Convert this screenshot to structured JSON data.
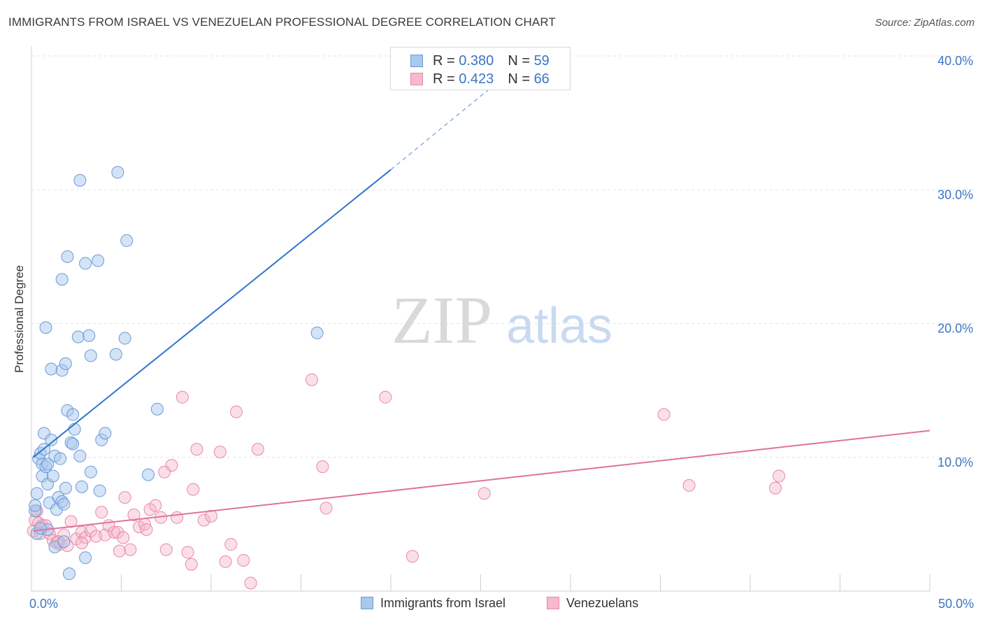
{
  "title": "IMMIGRANTS FROM ISRAEL VS VENEZUELAN PROFESSIONAL DEGREE CORRELATION CHART",
  "source": "Source: ZipAtlas.com",
  "watermark": {
    "zip": "ZIP",
    "atlas": "atlas"
  },
  "colors": {
    "blue_fill": "#a9c8ee",
    "blue_stroke": "#6a9bd8",
    "blue_line": "#2f74d0",
    "pink_fill": "#f7b9cc",
    "pink_stroke": "#e889a6",
    "pink_line": "#e0739b",
    "axis_text": "#3a75c4"
  },
  "legend_top": [
    {
      "r_label": "R = ",
      "r_value": "0.380",
      "n_label": "N = ",
      "n_value": "59"
    },
    {
      "r_label": "R = ",
      "r_value": "0.423",
      "n_label": "N = ",
      "n_value": "66"
    }
  ],
  "chart_data": {
    "type": "scatter",
    "title": "IMMIGRANTS FROM ISRAEL VS VENEZUELAN PROFESSIONAL DEGREE CORRELATION CHART",
    "xlabel": "",
    "ylabel": "Professional Degree",
    "xlim": [
      0,
      50
    ],
    "ylim": [
      0,
      40
    ],
    "x_tick_labels": [
      "0.0%",
      "50.0%"
    ],
    "y_ticks": [
      10,
      20,
      30,
      40
    ],
    "y_tick_labels": [
      "10.0%",
      "20.0%",
      "30.0%",
      "40.0%"
    ],
    "grid": true,
    "legend_position": "bottom",
    "series": [
      {
        "name": "Immigrants from Israel",
        "color": "#a9c8ee",
        "trend": {
          "x": [
            0.1,
            20.0
          ],
          "y": [
            10.0,
            31.5
          ],
          "dashed_to": [
            27.0,
            39.2
          ]
        },
        "points": [
          [
            0.2,
            6.0
          ],
          [
            0.3,
            7.3
          ],
          [
            0.2,
            6.4
          ],
          [
            0.4,
            9.9
          ],
          [
            0.5,
            10.3
          ],
          [
            0.6,
            9.5
          ],
          [
            0.6,
            8.6
          ],
          [
            0.7,
            10.6
          ],
          [
            0.7,
            11.8
          ],
          [
            0.8,
            9.3
          ],
          [
            0.9,
            9.5
          ],
          [
            0.9,
            8.0
          ],
          [
            1.0,
            6.6
          ],
          [
            1.1,
            11.3
          ],
          [
            1.2,
            8.6
          ],
          [
            1.3,
            10.1
          ],
          [
            1.4,
            6.1
          ],
          [
            1.5,
            7.0
          ],
          [
            1.6,
            9.9
          ],
          [
            1.7,
            6.7
          ],
          [
            1.8,
            6.5
          ],
          [
            1.9,
            7.7
          ],
          [
            2.0,
            13.5
          ],
          [
            2.2,
            11.1
          ],
          [
            2.3,
            13.2
          ],
          [
            2.4,
            12.1
          ],
          [
            2.7,
            10.1
          ],
          [
            2.8,
            7.8
          ],
          [
            2.3,
            11.0
          ],
          [
            3.0,
            2.5
          ],
          [
            3.3,
            8.9
          ],
          [
            3.8,
            7.5
          ],
          [
            3.9,
            11.3
          ],
          [
            4.1,
            11.8
          ],
          [
            0.8,
            19.7
          ],
          [
            1.1,
            16.6
          ],
          [
            1.7,
            16.5
          ],
          [
            1.9,
            17.0
          ],
          [
            2.6,
            19.0
          ],
          [
            3.2,
            19.1
          ],
          [
            3.3,
            17.6
          ],
          [
            4.7,
            17.7
          ],
          [
            5.2,
            18.9
          ],
          [
            1.7,
            23.3
          ],
          [
            2.0,
            25.0
          ],
          [
            3.0,
            24.5
          ],
          [
            3.7,
            24.7
          ],
          [
            5.3,
            26.2
          ],
          [
            2.7,
            30.7
          ],
          [
            4.8,
            31.3
          ],
          [
            7.0,
            13.6
          ],
          [
            6.5,
            8.7
          ],
          [
            15.9,
            19.3
          ],
          [
            0.9,
            4.6
          ],
          [
            1.3,
            3.3
          ],
          [
            1.8,
            3.7
          ],
          [
            2.1,
            1.3
          ],
          [
            0.3,
            4.3
          ],
          [
            0.5,
            4.7
          ]
        ]
      },
      {
        "name": "Venezuelans",
        "color": "#f7b9cc",
        "trend": {
          "x": [
            0.1,
            50.0
          ],
          "y": [
            4.5,
            12.0
          ]
        },
        "points": [
          [
            0.1,
            4.5
          ],
          [
            0.2,
            5.3
          ],
          [
            0.3,
            6.0
          ],
          [
            0.4,
            5.1
          ],
          [
            0.5,
            4.3
          ],
          [
            0.6,
            4.9
          ],
          [
            0.8,
            4.9
          ],
          [
            1.0,
            4.3
          ],
          [
            1.2,
            3.8
          ],
          [
            1.4,
            3.6
          ],
          [
            1.6,
            3.5
          ],
          [
            1.8,
            4.2
          ],
          [
            2.0,
            3.4
          ],
          [
            2.2,
            5.2
          ],
          [
            2.5,
            3.9
          ],
          [
            2.8,
            4.4
          ],
          [
            3.0,
            4.0
          ],
          [
            3.3,
            4.5
          ],
          [
            3.6,
            4.1
          ],
          [
            3.9,
            5.9
          ],
          [
            4.1,
            4.2
          ],
          [
            4.3,
            4.9
          ],
          [
            4.6,
            4.4
          ],
          [
            4.8,
            4.4
          ],
          [
            5.1,
            4.0
          ],
          [
            5.5,
            3.1
          ],
          [
            5.7,
            5.7
          ],
          [
            6.0,
            4.8
          ],
          [
            6.3,
            5.0
          ],
          [
            6.6,
            6.1
          ],
          [
            6.9,
            6.4
          ],
          [
            7.2,
            5.5
          ],
          [
            7.5,
            3.1
          ],
          [
            7.8,
            9.4
          ],
          [
            8.1,
            5.5
          ],
          [
            8.4,
            14.5
          ],
          [
            8.7,
            2.9
          ],
          [
            8.9,
            2.0
          ],
          [
            9.2,
            10.6
          ],
          [
            9.6,
            5.3
          ],
          [
            10.0,
            5.6
          ],
          [
            10.5,
            10.4
          ],
          [
            10.8,
            2.2
          ],
          [
            11.1,
            3.5
          ],
          [
            11.4,
            13.4
          ],
          [
            11.8,
            2.3
          ],
          [
            12.2,
            0.6
          ],
          [
            15.6,
            15.8
          ],
          [
            16.2,
            9.3
          ],
          [
            16.4,
            6.2
          ],
          [
            19.7,
            14.5
          ],
          [
            21.2,
            2.6
          ],
          [
            25.2,
            7.3
          ],
          [
            35.2,
            13.2
          ],
          [
            36.6,
            7.9
          ],
          [
            41.4,
            7.7
          ],
          [
            41.6,
            8.6
          ],
          [
            0.3,
            6.0
          ],
          [
            1.5,
            3.7
          ],
          [
            2.8,
            3.6
          ],
          [
            4.9,
            3.0
          ],
          [
            5.2,
            7.0
          ],
          [
            6.4,
            4.6
          ],
          [
            7.4,
            8.9
          ],
          [
            9.0,
            7.6
          ],
          [
            12.6,
            10.6
          ]
        ]
      }
    ]
  }
}
